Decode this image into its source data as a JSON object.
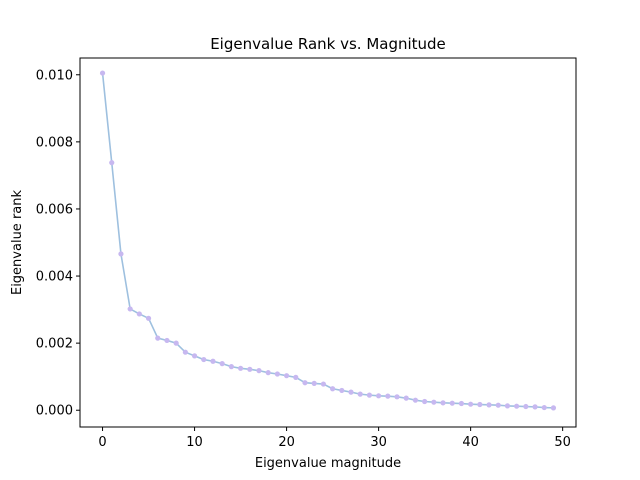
{
  "chart_data": {
    "type": "line",
    "title": "Eigenvalue Rank vs. Magnitude",
    "xlabel": "Eigenvalue magnitude",
    "ylabel": "Eigenvalue rank",
    "xlim": [
      -2.45,
      51.45
    ],
    "ylim": [
      -0.0005,
      0.0105
    ],
    "x_ticks": [
      0,
      10,
      20,
      30,
      40,
      50
    ],
    "x_tick_labels": [
      "0",
      "10",
      "20",
      "30",
      "40",
      "50"
    ],
    "y_ticks": [
      0.0,
      0.002,
      0.004,
      0.006,
      0.008,
      0.01
    ],
    "y_tick_labels": [
      "0.000",
      "0.002",
      "0.004",
      "0.006",
      "0.008",
      "0.010"
    ],
    "grid": false,
    "series": [
      {
        "line_color": "#9ec0df",
        "marker_color": "#c7b8f0",
        "x": [
          0,
          1,
          2,
          3,
          4,
          5,
          6,
          7,
          8,
          9,
          10,
          11,
          12,
          13,
          14,
          15,
          16,
          17,
          18,
          19,
          20,
          21,
          22,
          23,
          24,
          25,
          26,
          27,
          28,
          29,
          30,
          31,
          32,
          33,
          34,
          35,
          36,
          37,
          38,
          39,
          40,
          41,
          42,
          43,
          44,
          45,
          46,
          47,
          48,
          49
        ],
        "y": [
          0.01005,
          0.00738,
          0.00466,
          0.00302,
          0.00287,
          0.00274,
          0.00215,
          0.00208,
          0.002,
          0.00173,
          0.00162,
          0.00151,
          0.00146,
          0.00139,
          0.0013,
          0.00125,
          0.00122,
          0.00118,
          0.00112,
          0.00108,
          0.00103,
          0.00098,
          0.00082,
          0.0008,
          0.00078,
          0.00064,
          0.00059,
          0.00054,
          0.00048,
          0.00045,
          0.00043,
          0.00042,
          0.0004,
          0.00036,
          0.0003,
          0.00026,
          0.00024,
          0.00022,
          0.00021,
          0.0002,
          0.00018,
          0.00017,
          0.00016,
          0.00015,
          0.00013,
          0.00012,
          0.00011,
          0.0001,
          8e-05,
          7e-05
        ]
      }
    ]
  }
}
